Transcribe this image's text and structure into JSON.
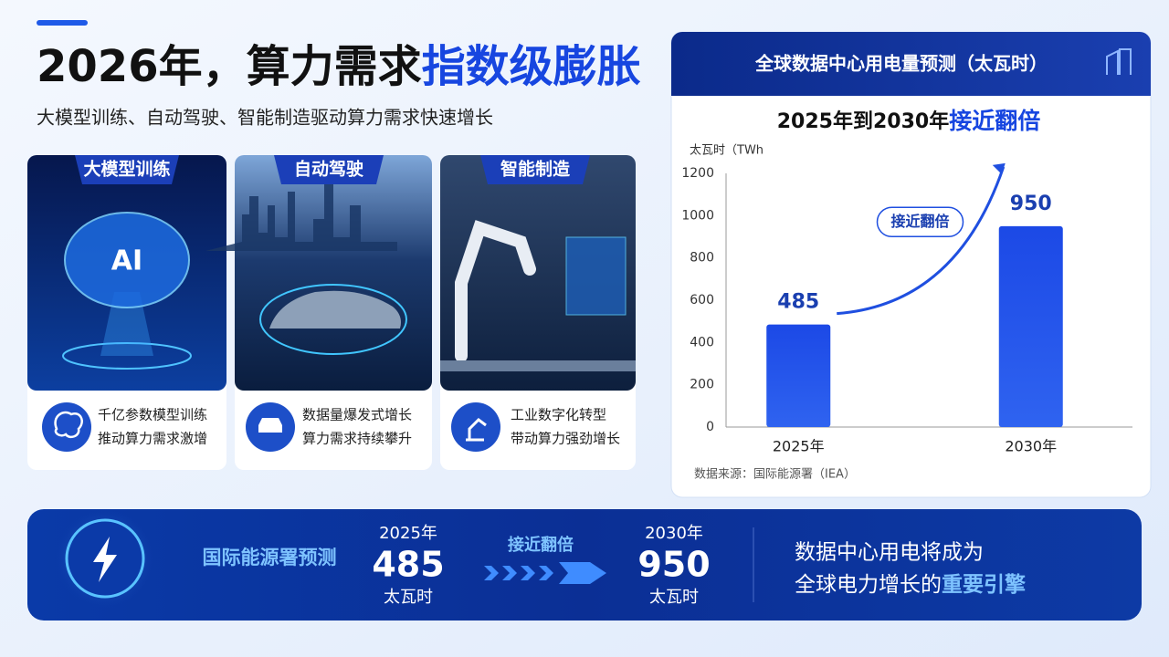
{
  "header": {
    "title": "2026年，算力需求",
    "title_emphasis": "指数级膨胀",
    "subtitle": "大模型训练、自动驾驶、智能制造驱动算力需求快速增长"
  },
  "cards": [
    {
      "label": "大模型训练",
      "image_text": "AI",
      "lines": [
        "千亿参数模型训练",
        "推动算力需求激增"
      ]
    },
    {
      "label": "自动驾驶",
      "lines": [
        "数据量爆发式增长",
        "算力需求持续攀升"
      ]
    },
    {
      "label": "智能制造",
      "lines": [
        "工业数字化转型",
        "带动算力强劲增长"
      ]
    }
  ],
  "panel": {
    "title": "全球数据中心用电量预测（太瓦时）",
    "source": "数据来源：国际能源署（IEA）"
  },
  "chart_data": {
    "type": "bar",
    "title": "2025年到2030年",
    "title_emphasis": "接近翻倍",
    "y_label": "太瓦时（TWh",
    "categories": [
      "2025年",
      "2030年"
    ],
    "values": [
      485,
      950
    ],
    "color": "#1f4fe0",
    "ylim": [
      0,
      1200
    ],
    "yticks": [
      0,
      200,
      400,
      600,
      800,
      1000,
      1200
    ],
    "grid": false,
    "annotation": "接近翻倍"
  },
  "banner": {
    "label": "国际能源署预测",
    "unit": "太瓦时",
    "arrow_label": "接近翻倍",
    "statement": [
      "数据中心用电将成为",
      "全球电力增长的"
    ],
    "statement_emphasis": "重要引擎"
  }
}
